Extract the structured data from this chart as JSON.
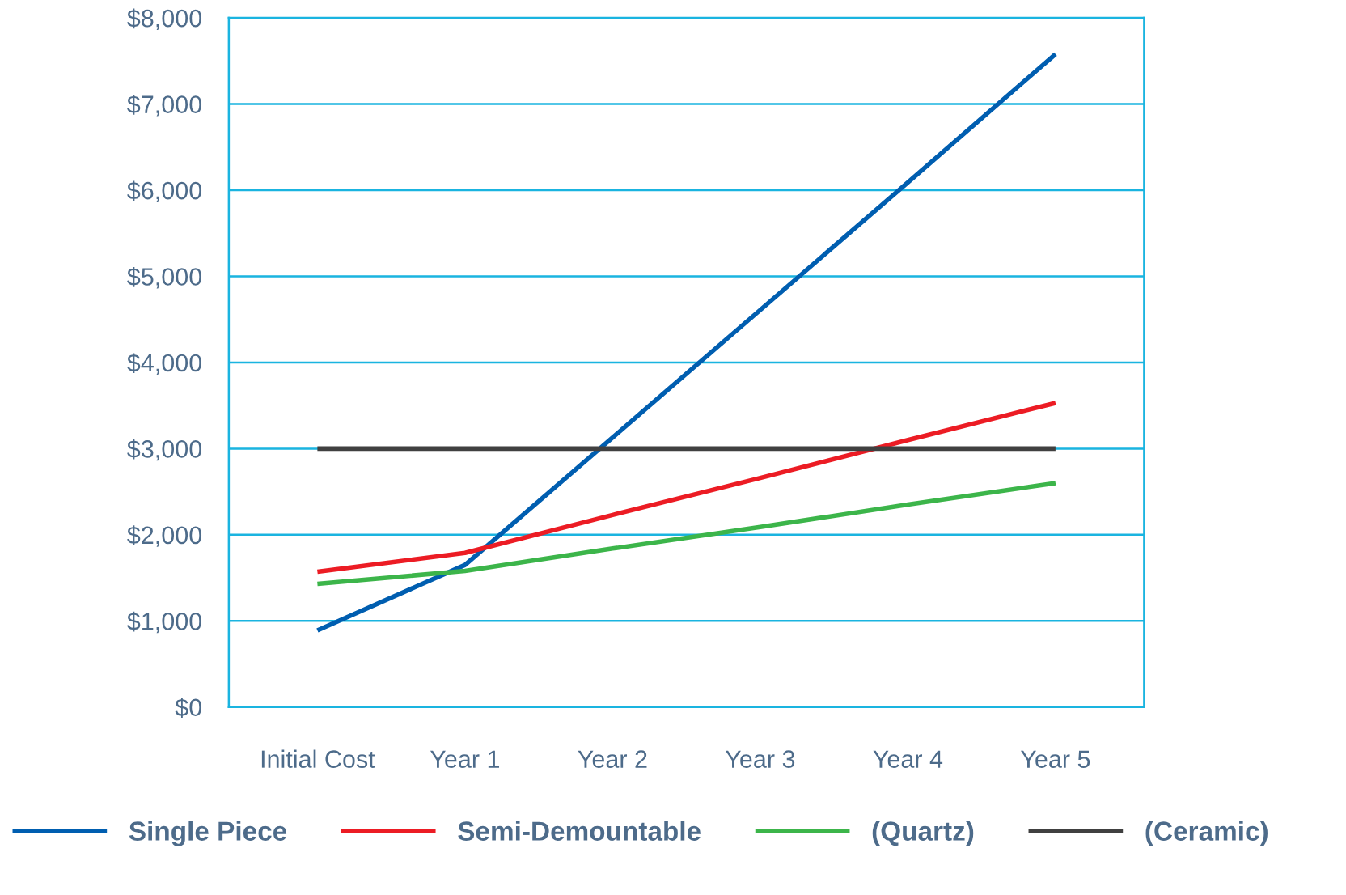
{
  "chart_data": {
    "type": "line",
    "categories": [
      "Initial Cost",
      "Year 1",
      "Year 2",
      "Year 3",
      "Year 4",
      "Year 5"
    ],
    "series": [
      {
        "name": "Single Piece",
        "color": "#005eb0",
        "values": [
          890,
          1650,
          3130,
          4610,
          6090,
          7580
        ]
      },
      {
        "name": "Semi-Demountable",
        "color": "#ec1c24",
        "values": [
          1570,
          1790,
          2230,
          2660,
          3100,
          3530
        ]
      },
      {
        "name": "(Quartz)",
        "color": "#3cb54a",
        "values": [
          1430,
          1580,
          1840,
          2090,
          2350,
          2600
        ]
      },
      {
        "name": "(Ceramic)",
        "color": "#404040",
        "values": [
          3000,
          3000,
          3000,
          3000,
          3000,
          3000
        ]
      }
    ],
    "ylim": [
      0,
      8000
    ],
    "yticks": [
      {
        "value": 0,
        "label": "$0"
      },
      {
        "value": 1000,
        "label": "$1,000"
      },
      {
        "value": 2000,
        "label": "$2,000"
      },
      {
        "value": 3000,
        "label": "$3,000"
      },
      {
        "value": 4000,
        "label": "$4,000"
      },
      {
        "value": 5000,
        "label": "$5,000"
      },
      {
        "value": 6000,
        "label": "$6,000"
      },
      {
        "value": 7000,
        "label": "$7,000"
      },
      {
        "value": 8000,
        "label": "$8,000"
      }
    ],
    "grid": "y",
    "legend": "bottom",
    "marker": "none",
    "line_style": "solid"
  }
}
